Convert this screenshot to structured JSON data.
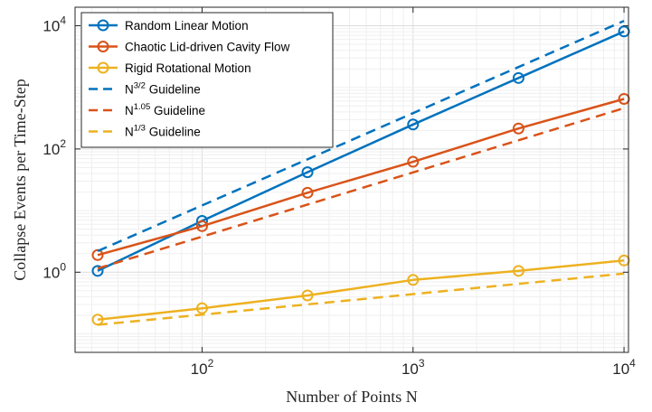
{
  "chart_data": {
    "type": "line",
    "xlabel": "Number of Points N",
    "ylabel": "Collapse Events per Time-Step",
    "xscale": "log",
    "yscale": "log",
    "xlim": [
      25,
      10500
    ],
    "ylim": [
      0.05,
      20000
    ],
    "grid": true,
    "legend_position": "top-left",
    "x_ticks": [
      {
        "value": 100,
        "base": "10",
        "exp": "2"
      },
      {
        "value": 1000,
        "base": "10",
        "exp": "3"
      },
      {
        "value": 10000,
        "base": "10",
        "exp": "4"
      }
    ],
    "y_ticks": [
      {
        "value": 1,
        "base": "10",
        "exp": "0"
      },
      {
        "value": 100,
        "base": "10",
        "exp": "2"
      },
      {
        "value": 10000,
        "base": "10",
        "exp": "4"
      }
    ],
    "series": [
      {
        "name": "Random Linear Motion",
        "color": "#0072BD",
        "style": "solid",
        "marker": "circle",
        "x": [
          32,
          100,
          316,
          1000,
          3162,
          10000
        ],
        "y": [
          1.05,
          6.8,
          42,
          250,
          1420,
          8100
        ]
      },
      {
        "name": "Chaotic Lid-driven Cavity Flow",
        "color": "#D95319",
        "style": "solid",
        "marker": "circle",
        "x": [
          32,
          100,
          316,
          1000,
          3162,
          10000
        ],
        "y": [
          1.9,
          5.6,
          19.5,
          62,
          215,
          650
        ]
      },
      {
        "name": "Rigid Rotational Motion",
        "color": "#EDB120",
        "style": "solid",
        "marker": "circle",
        "x": [
          32,
          100,
          316,
          1000,
          3162,
          10000
        ],
        "y": [
          0.17,
          0.26,
          0.42,
          0.75,
          1.05,
          1.55
        ]
      },
      {
        "name_base": "N",
        "name_sup": "3/2",
        "name_suffix": " Guideline",
        "color": "#0072BD",
        "style": "dashed",
        "marker": "none",
        "x": [
          32,
          10000
        ],
        "y": [
          2.2,
          12000
        ]
      },
      {
        "name_base": "N",
        "name_sup": "1.05",
        "name_suffix": " Guideline",
        "color": "#D95319",
        "style": "dashed",
        "marker": "none",
        "x": [
          32,
          10000
        ],
        "y": [
          1.15,
          460
        ]
      },
      {
        "name_base": "N",
        "name_sup": "1/3",
        "name_suffix": " Guideline",
        "color": "#EDB120",
        "style": "dashed",
        "marker": "none",
        "x": [
          32,
          10000
        ],
        "y": [
          0.14,
          0.95
        ]
      }
    ]
  }
}
